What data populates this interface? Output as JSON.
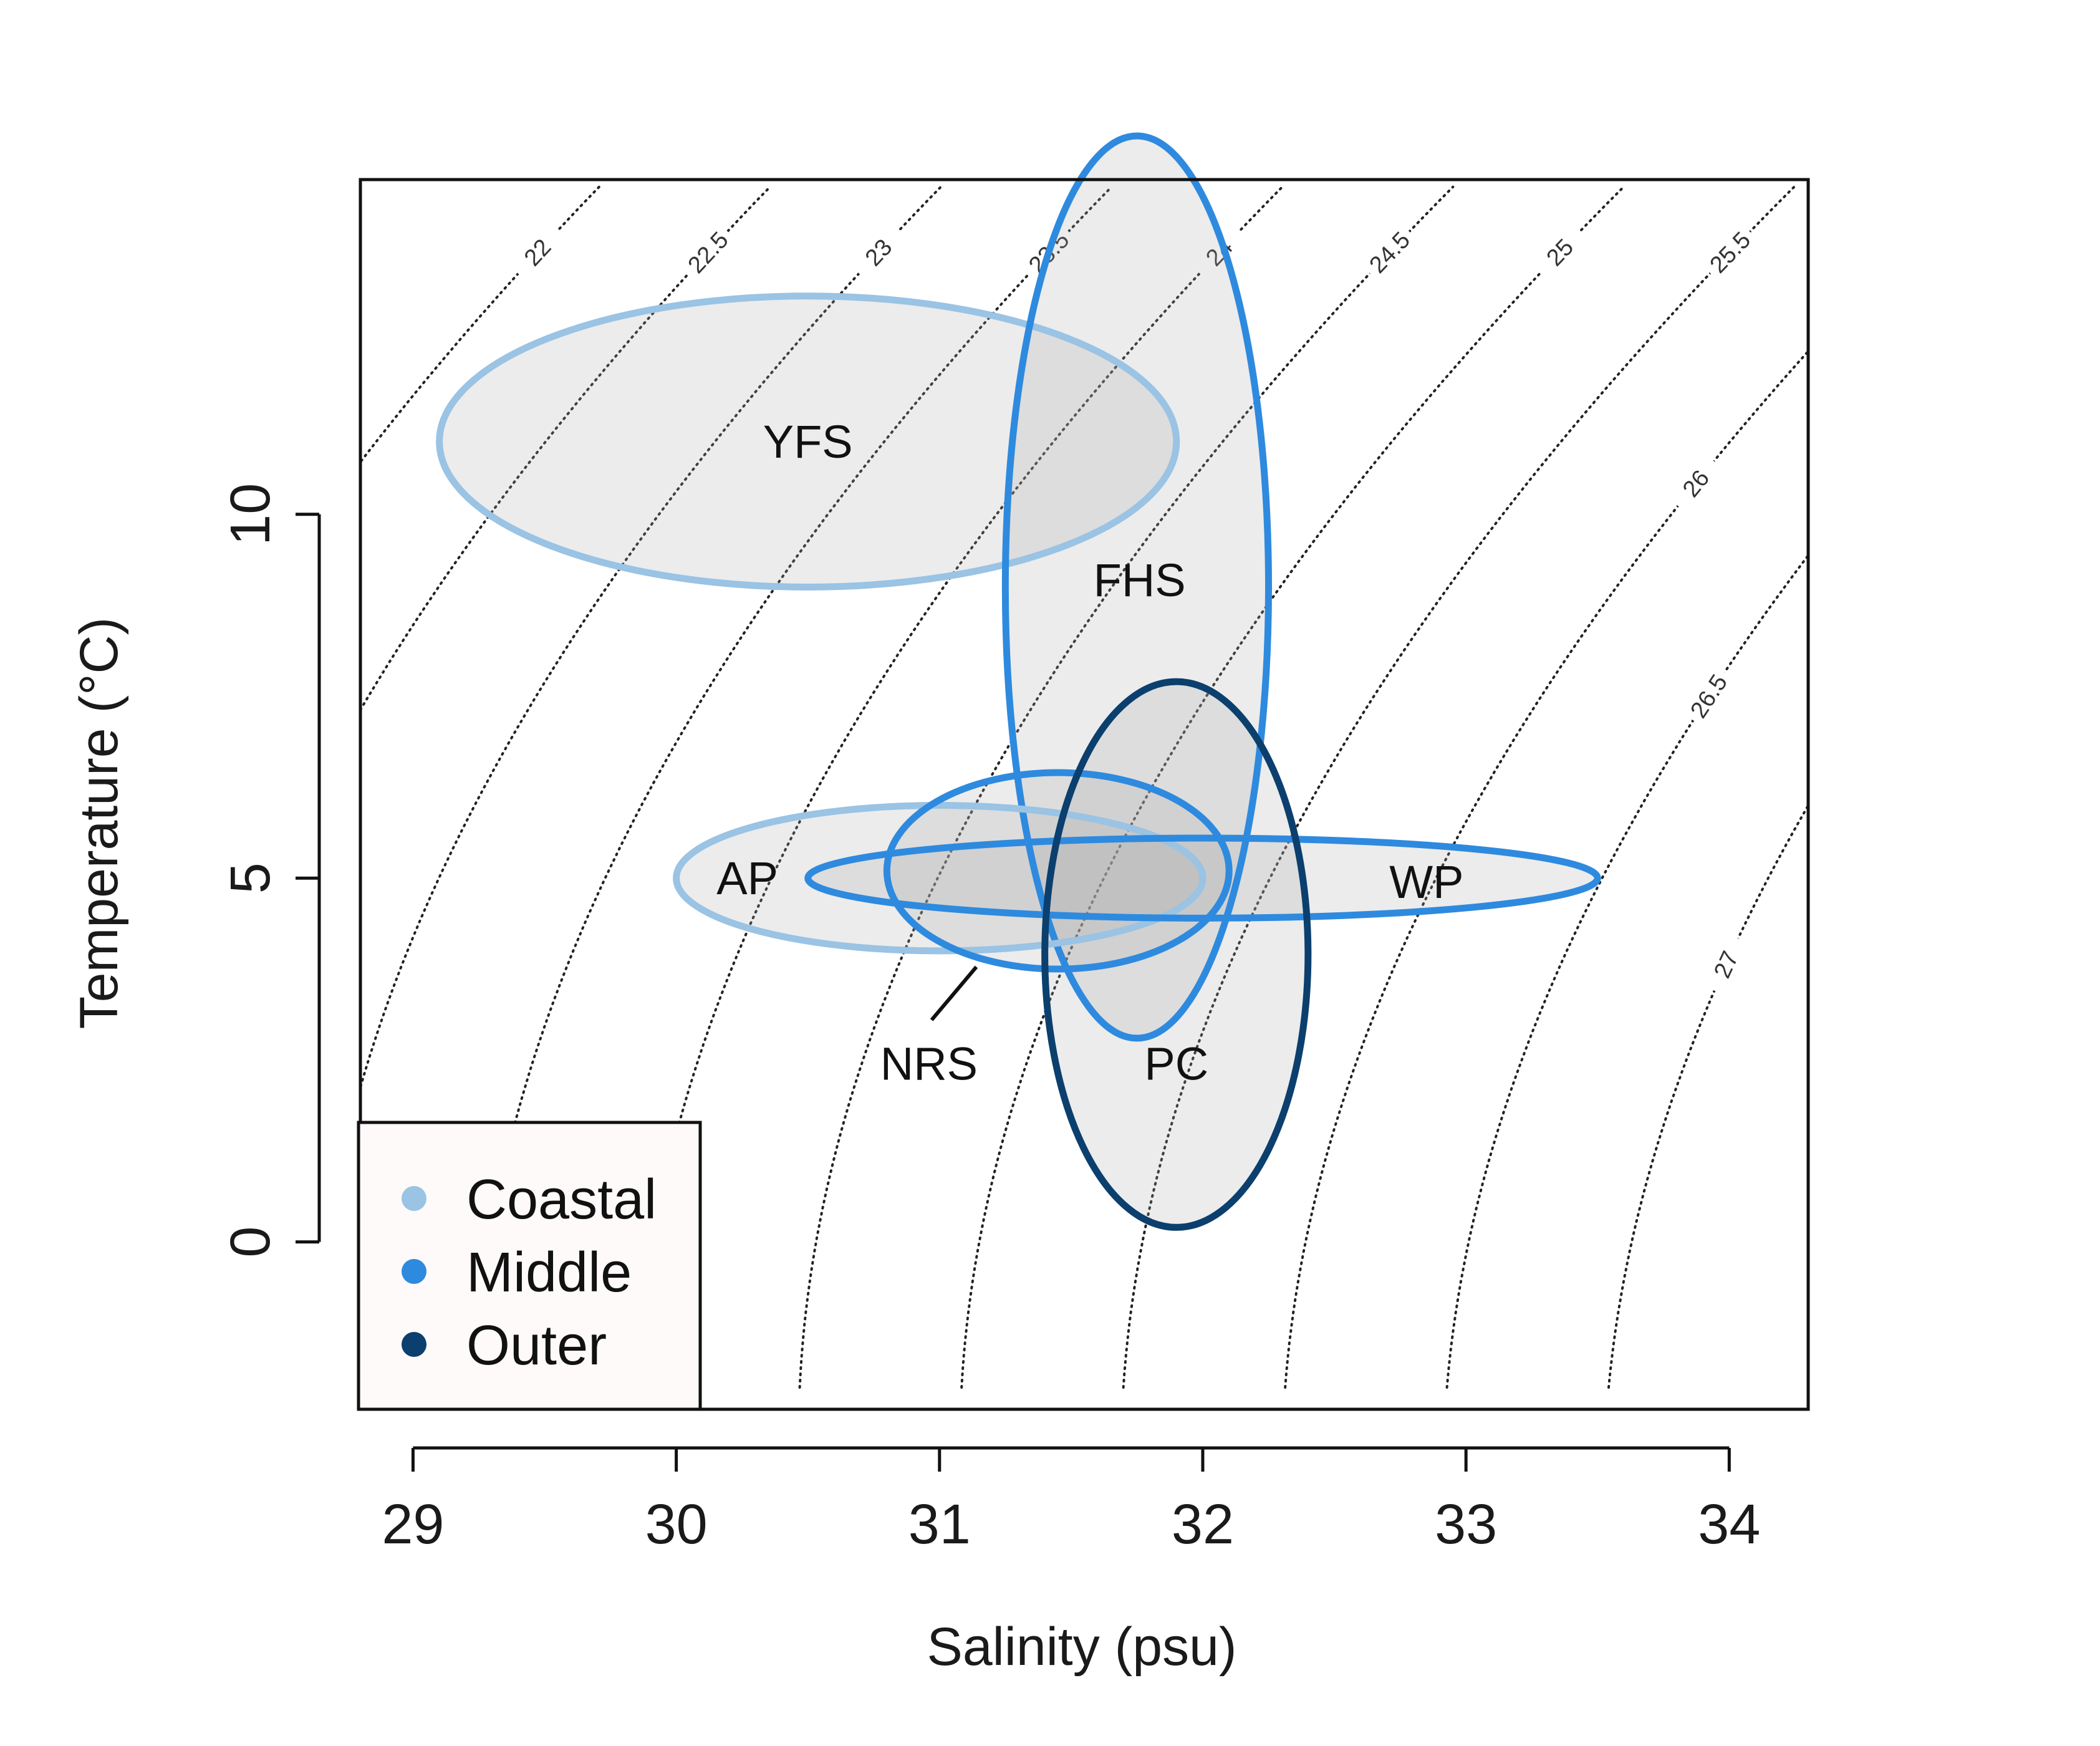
{
  "chart_data": {
    "type": "scatter",
    "xlabel": "Salinity (psu)",
    "ylabel": "Temperature (°C)",
    "xlim": [
      28.8,
      34.3
    ],
    "ylim": [
      -2.3,
      14.6
    ],
    "xticks": [
      29,
      30,
      31,
      32,
      33,
      34
    ],
    "yticks": [
      0,
      5,
      10
    ],
    "grid": false,
    "legend_position": "bottom-left",
    "legend": [
      {
        "name": "Coastal",
        "color": "#9ac3e4"
      },
      {
        "name": "Middle",
        "color": "#2e8ade"
      },
      {
        "name": "Outer",
        "color": "#0b3f6e"
      }
    ],
    "isopycnals": [
      {
        "label": "22",
        "value": 22.0
      },
      {
        "label": "22.5",
        "value": 22.5
      },
      {
        "label": "23",
        "value": 23.0
      },
      {
        "label": "23.5",
        "value": 23.5
      },
      {
        "label": "24",
        "value": 24.0
      },
      {
        "label": "24.5",
        "value": 24.5
      },
      {
        "label": "25",
        "value": 25.0
      },
      {
        "label": "25.5",
        "value": 25.5
      },
      {
        "label": "26",
        "value": 26.0
      },
      {
        "label": "26.5",
        "value": 26.5
      },
      {
        "label": "27",
        "value": 27.0
      }
    ],
    "ellipses": [
      {
        "label": "YFS",
        "group": "Coastal",
        "x": 30.5,
        "y": 11.0,
        "rx": 1.4,
        "ry": 2.0
      },
      {
        "label": "FHS",
        "group": "Middle",
        "x": 31.75,
        "y": 9.0,
        "rx": 0.5,
        "ry": 6.2
      },
      {
        "label": "AP",
        "group": "Coastal",
        "x": 31.0,
        "y": 5.0,
        "rx": 1.0,
        "ry": 1.0
      },
      {
        "label": "WP",
        "group": "Middle",
        "x": 32.0,
        "y": 5.0,
        "rx": 1.5,
        "ry": 0.55
      },
      {
        "label": "NRS",
        "group": "Middle",
        "x": 31.45,
        "y": 5.1,
        "rx": 0.65,
        "ry": 1.35
      },
      {
        "label": "PC",
        "group": "Outer",
        "x": 31.9,
        "y": 3.95,
        "rx": 0.5,
        "ry": 3.75
      }
    ]
  }
}
